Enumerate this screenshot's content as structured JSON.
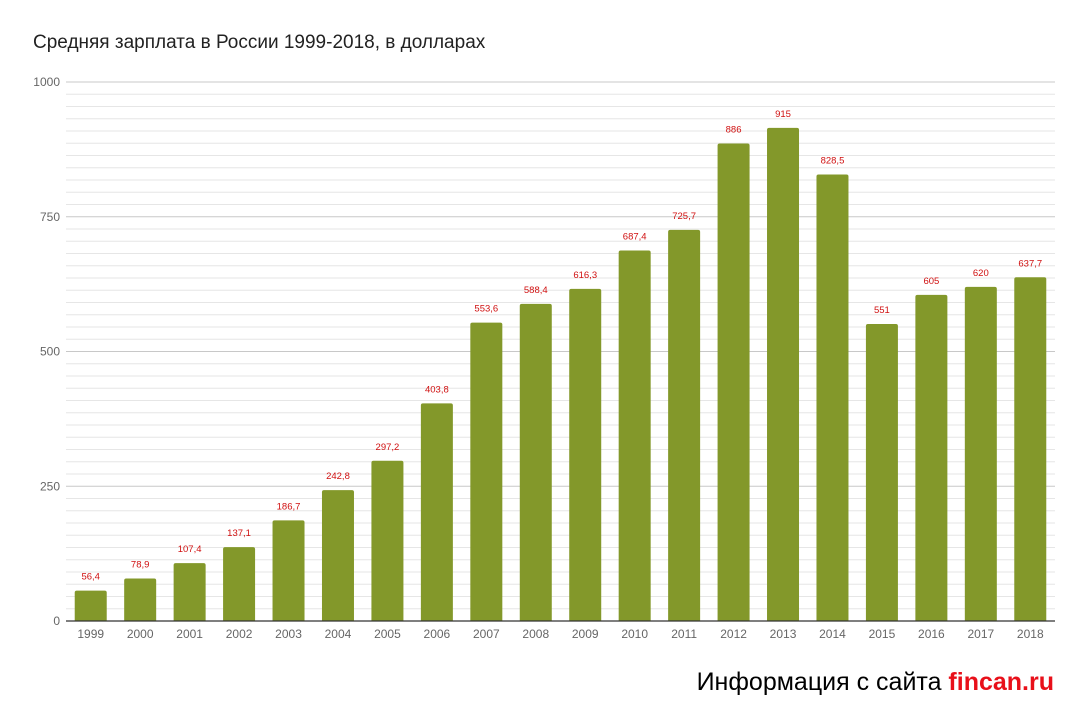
{
  "chart_data": {
    "type": "bar",
    "title": "Средняя зарплата в России 1999-2018, в долларах",
    "xlabel": "",
    "ylabel": "",
    "ylim": [
      0,
      1000
    ],
    "yticks": [
      "0",
      "250",
      "500",
      "750",
      "1000"
    ],
    "grid": true,
    "legend": "none",
    "bar_color": "#83982a",
    "label_color": "#d01010",
    "categories": [
      "1999",
      "2000",
      "2001",
      "2002",
      "2003",
      "2004",
      "2005",
      "2006",
      "2007",
      "2008",
      "2009",
      "2010",
      "2011",
      "2012",
      "2013",
      "2014",
      "2015",
      "2016",
      "2017",
      "2018"
    ],
    "values": [
      56.4,
      78.9,
      107.4,
      137.1,
      186.7,
      242.8,
      297.2,
      403.8,
      553.6,
      588.4,
      616.3,
      687.4,
      725.7,
      886,
      915,
      828.5,
      551,
      605,
      620,
      637.7
    ],
    "labels": [
      "56,4",
      "78,9",
      "107,4",
      "137,1",
      "186,7",
      "242,8",
      "297,2",
      "403,8",
      "553,6",
      "588,4",
      "616,3",
      "687,4",
      "725,7",
      "886",
      "915",
      "828,5",
      "551",
      "605",
      "620",
      "637,7"
    ]
  },
  "footer": {
    "source_prefix": "Информация с сайта ",
    "source_brand": "fincan.ru"
  }
}
